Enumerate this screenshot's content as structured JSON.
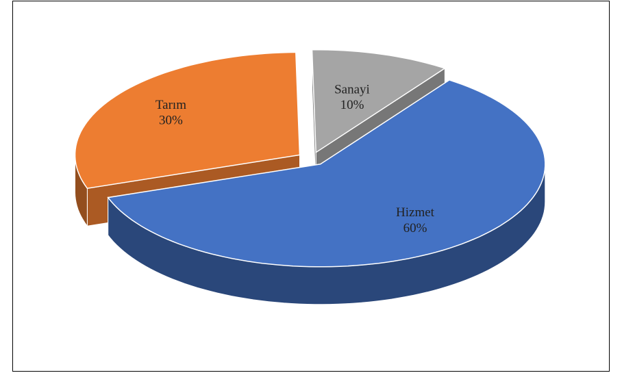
{
  "chart_data": {
    "type": "pie",
    "categories": [
      "Hizmet",
      "Tarım",
      "Sanayi"
    ],
    "values": [
      60,
      30,
      10
    ],
    "value_labels": [
      "60%",
      "30%",
      "10%"
    ],
    "colors": [
      "#4472c4",
      "#ed7d31",
      "#a5a5a5"
    ]
  }
}
